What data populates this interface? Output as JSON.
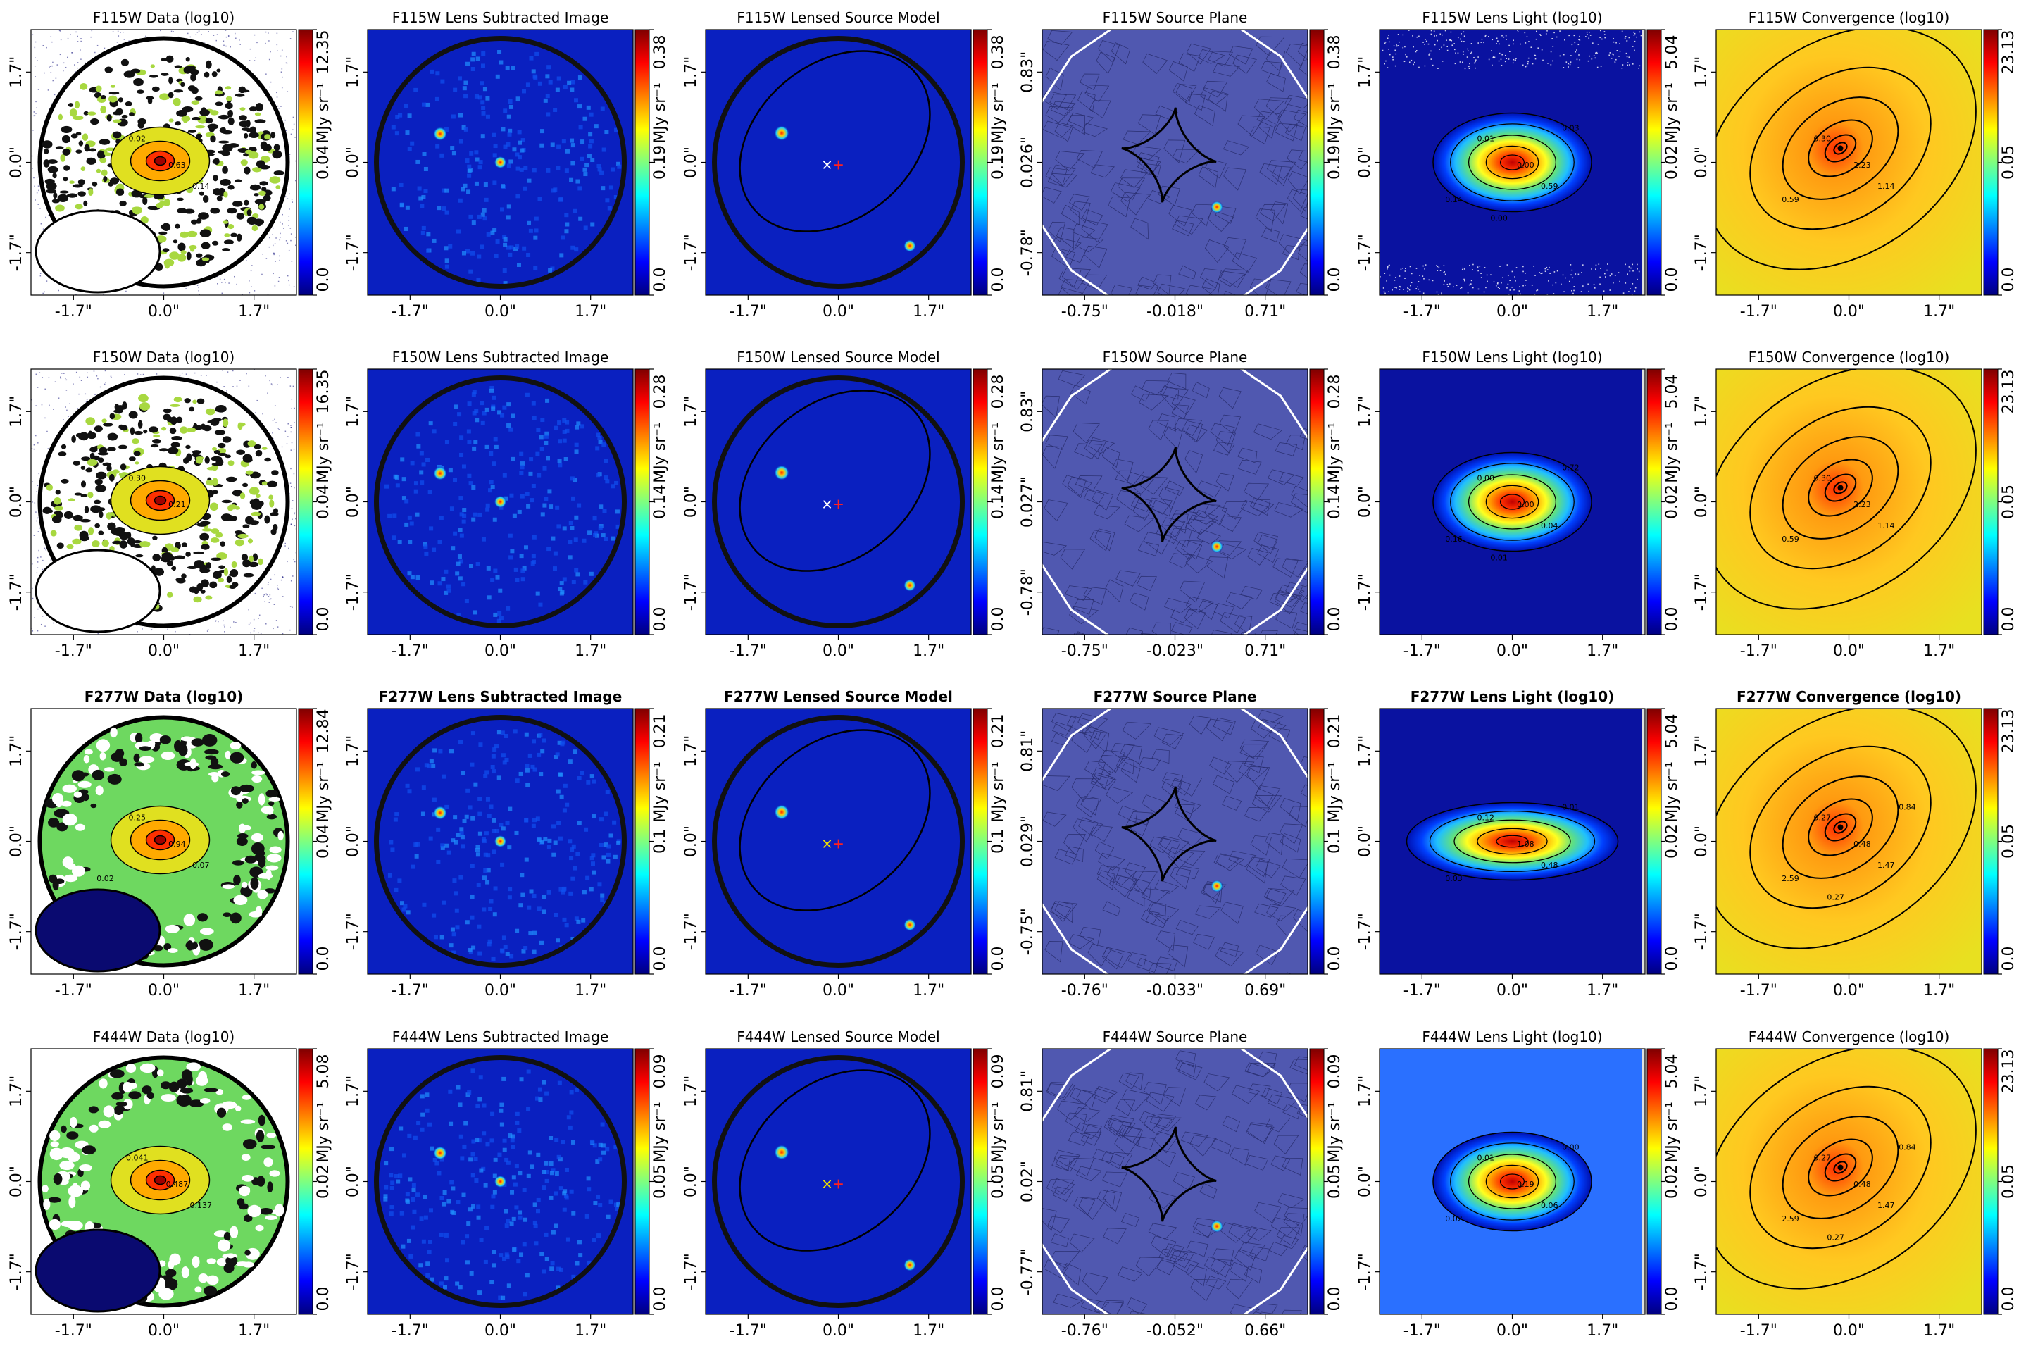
{
  "colormap": [
    "#00007f",
    "#0000ff",
    "#007fff",
    "#00ffff",
    "#7fff7f",
    "#ffff00",
    "#ff7f00",
    "#ff0000",
    "#7f0000"
  ],
  "chart_data": [
    {
      "type": "heatmap",
      "title": "F115W Data (log10)",
      "panel": "data",
      "row": 0,
      "col": 0,
      "bold": false,
      "x_ticks": [
        "-1.7\"",
        "0.0\"",
        "1.7\""
      ],
      "y_ticks": [
        "-1.7\"",
        "0.0\"",
        "1.7\""
      ],
      "colorbar": {
        "ticks": [
          "0.0",
          "0.04",
          "12.35"
        ],
        "label": "MJy sr⁻¹"
      },
      "contour_labels": [
        "0.02",
        "0.63",
        "0.14"
      ]
    },
    {
      "type": "heatmap",
      "title": "F115W Lens Subtracted Image",
      "panel": "residual",
      "row": 0,
      "col": 1,
      "bold": false,
      "x_ticks": [
        "-1.7\"",
        "0.0\"",
        "1.7\""
      ],
      "y_ticks": [
        "-1.7\"",
        "0.0\"",
        "1.7\""
      ],
      "colorbar": {
        "ticks": [
          "0.0",
          "0.19",
          "0.38"
        ],
        "label": "MJy sr⁻¹"
      },
      "contour_labels": []
    },
    {
      "type": "heatmap",
      "title": "F115W Lensed Source Model",
      "panel": "model",
      "row": 0,
      "col": 2,
      "bold": false,
      "x_ticks": [
        "-1.7\"",
        "0.0\"",
        "1.7\""
      ],
      "y_ticks": [
        "-1.7\"",
        "0.0\"",
        "1.7\""
      ],
      "colorbar": {
        "ticks": [
          "0.0",
          "0.19",
          "0.38"
        ],
        "label": "MJy sr⁻¹"
      },
      "contour_labels": []
    },
    {
      "type": "heatmap",
      "title": "F115W Source Plane",
      "panel": "source",
      "row": 0,
      "col": 3,
      "bold": false,
      "x_ticks": [
        "-0.75\"",
        "-0.018\"",
        "0.71\""
      ],
      "y_ticks": [
        "-0.78\"",
        "0.026\"",
        "0.83\""
      ],
      "colorbar": {
        "ticks": [
          "0.0",
          "0.19",
          "0.38"
        ],
        "label": "MJy sr⁻¹"
      },
      "contour_labels": []
    },
    {
      "type": "heatmap",
      "title": "F115W Lens Light (log10)",
      "panel": "light",
      "row": 0,
      "col": 4,
      "bold": false,
      "x_ticks": [
        "-1.7\"",
        "0.0\"",
        "1.7\""
      ],
      "y_ticks": [
        "-1.7\"",
        "0.0\"",
        "1.7\""
      ],
      "colorbar": {
        "ticks": [
          "0.0",
          "0.02",
          "5.04"
        ],
        "label": "MJy sr⁻¹"
      },
      "contour_labels": [
        "0.01",
        "0.00",
        "0.59",
        "0.14",
        "0.03",
        "0.00"
      ]
    },
    {
      "type": "heatmap",
      "title": "F115W Convergence (log10)",
      "panel": "kappa",
      "row": 0,
      "col": 5,
      "bold": false,
      "x_ticks": [
        "-1.7\"",
        "0.0\"",
        "1.7\""
      ],
      "y_ticks": [
        "-1.7\"",
        "0.0\"",
        "1.7\""
      ],
      "colorbar": {
        "ticks": [
          "0.0",
          "0.05",
          "23.13"
        ],
        "label": ""
      },
      "contour_labels": [
        "0.30",
        "2.23",
        "1.14",
        "0.59"
      ]
    },
    {
      "type": "heatmap",
      "title": "F150W Data (log10)",
      "panel": "data",
      "row": 1,
      "col": 0,
      "bold": false,
      "x_ticks": [
        "-1.7\"",
        "0.0\"",
        "1.7\""
      ],
      "y_ticks": [
        "-1.7\"",
        "0.0\"",
        "1.7\""
      ],
      "colorbar": {
        "ticks": [
          "0.0",
          "0.04",
          "16.35"
        ],
        "label": "MJy sr⁻¹"
      },
      "contour_labels": [
        "0.30",
        "0.21"
      ]
    },
    {
      "type": "heatmap",
      "title": "F150W Lens Subtracted Image",
      "panel": "residual",
      "row": 1,
      "col": 1,
      "bold": false,
      "x_ticks": [
        "-1.7\"",
        "0.0\"",
        "1.7\""
      ],
      "y_ticks": [
        "-1.7\"",
        "0.0\"",
        "1.7\""
      ],
      "colorbar": {
        "ticks": [
          "0.0",
          "0.14",
          "0.28"
        ],
        "label": "MJy sr⁻¹"
      },
      "contour_labels": []
    },
    {
      "type": "heatmap",
      "title": "F150W Lensed Source Model",
      "panel": "model",
      "row": 1,
      "col": 2,
      "bold": false,
      "x_ticks": [
        "-1.7\"",
        "0.0\"",
        "1.7\""
      ],
      "y_ticks": [
        "-1.7\"",
        "0.0\"",
        "1.7\""
      ],
      "colorbar": {
        "ticks": [
          "0.0",
          "0.14",
          "0.28"
        ],
        "label": "MJy sr⁻¹"
      },
      "contour_labels": []
    },
    {
      "type": "heatmap",
      "title": "F150W Source Plane",
      "panel": "source",
      "row": 1,
      "col": 3,
      "bold": false,
      "x_ticks": [
        "-0.75\"",
        "-0.023\"",
        "0.71\""
      ],
      "y_ticks": [
        "-0.78\"",
        "0.027\"",
        "0.83\""
      ],
      "colorbar": {
        "ticks": [
          "0.0",
          "0.14",
          "0.28"
        ],
        "label": "MJy sr⁻¹"
      },
      "contour_labels": []
    },
    {
      "type": "heatmap",
      "title": "F150W Lens Light (log10)",
      "panel": "light",
      "row": 1,
      "col": 4,
      "bold": false,
      "x_ticks": [
        "-1.7\"",
        "0.0\"",
        "1.7\""
      ],
      "y_ticks": [
        "-1.7\"",
        "0.0\"",
        "1.7\""
      ],
      "colorbar": {
        "ticks": [
          "0.0",
          "0.02",
          "5.04"
        ],
        "label": "MJy sr⁻¹"
      },
      "contour_labels": [
        "0.00",
        "0.00",
        "0.04",
        "0.16",
        "0.72",
        "0.01"
      ]
    },
    {
      "type": "heatmap",
      "title": "F150W Convergence (log10)",
      "panel": "kappa",
      "row": 1,
      "col": 5,
      "bold": false,
      "x_ticks": [
        "-1.7\"",
        "0.0\"",
        "1.7\""
      ],
      "y_ticks": [
        "-1.7\"",
        "0.0\"",
        "1.7\""
      ],
      "colorbar": {
        "ticks": [
          "0.0",
          "0.05",
          "23.13"
        ],
        "label": ""
      },
      "contour_labels": [
        "0.30",
        "2.23",
        "1.14",
        "0.59"
      ]
    },
    {
      "type": "heatmap",
      "title": "F277W Data (log10)",
      "panel": "data",
      "row": 2,
      "col": 0,
      "bold": true,
      "x_ticks": [
        "-1.7\"",
        "0.0\"",
        "1.7\""
      ],
      "y_ticks": [
        "-1.7\"",
        "0.0\"",
        "1.7\""
      ],
      "colorbar": {
        "ticks": [
          "0.0",
          "0.04",
          "12.84"
        ],
        "label": "MJy sr⁻¹"
      },
      "contour_labels": [
        "0.25",
        "0.94",
        "0.07",
        "0.02"
      ]
    },
    {
      "type": "heatmap",
      "title": "F277W Lens Subtracted Image",
      "panel": "residual",
      "row": 2,
      "col": 1,
      "bold": true,
      "x_ticks": [
        "-1.7\"",
        "0.0\"",
        "1.7\""
      ],
      "y_ticks": [
        "-1.7\"",
        "0.0\"",
        "1.7\""
      ],
      "colorbar": {
        "ticks": [
          "0.0",
          "0.1",
          "0.21"
        ],
        "label": "MJy sr⁻¹"
      },
      "contour_labels": []
    },
    {
      "type": "heatmap",
      "title": "F277W Lensed Source Model",
      "panel": "model",
      "row": 2,
      "col": 2,
      "bold": true,
      "x_ticks": [
        "-1.7\"",
        "0.0\"",
        "1.7\""
      ],
      "y_ticks": [
        "-1.7\"",
        "0.0\"",
        "1.7\""
      ],
      "colorbar": {
        "ticks": [
          "0.0",
          "0.1",
          "0.21"
        ],
        "label": "MJy sr⁻¹"
      },
      "contour_labels": []
    },
    {
      "type": "heatmap",
      "title": "F277W Source Plane",
      "panel": "source",
      "row": 2,
      "col": 3,
      "bold": true,
      "x_ticks": [
        "-0.76\"",
        "-0.033\"",
        "0.69\""
      ],
      "y_ticks": [
        "-0.75\"",
        "0.029\"",
        "0.81\""
      ],
      "colorbar": {
        "ticks": [
          "0.0",
          "0.1",
          "0.21"
        ],
        "label": "MJy sr⁻¹"
      },
      "contour_labels": []
    },
    {
      "type": "heatmap",
      "title": "F277W Lens Light (log10)",
      "panel": "light",
      "row": 2,
      "col": 4,
      "bold": true,
      "x_ticks": [
        "-1.7\"",
        "0.0\"",
        "1.7\""
      ],
      "y_ticks": [
        "-1.7\"",
        "0.0\"",
        "1.7\""
      ],
      "colorbar": {
        "ticks": [
          "0.0",
          "0.02",
          "5.04"
        ],
        "label": "MJy sr⁻¹"
      },
      "contour_labels": [
        "0.12",
        "1.08",
        "0.48",
        "0.03",
        "0.01"
      ]
    },
    {
      "type": "heatmap",
      "title": "F277W Convergence (log10)",
      "panel": "kappa",
      "row": 2,
      "col": 5,
      "bold": true,
      "x_ticks": [
        "-1.7\"",
        "0.0\"",
        "1.7\""
      ],
      "y_ticks": [
        "-1.7\"",
        "0.0\"",
        "1.7\""
      ],
      "colorbar": {
        "ticks": [
          "0.0",
          "0.05",
          "23.13"
        ],
        "label": ""
      },
      "contour_labels": [
        "0.27",
        "0.48",
        "1.47",
        "2.59",
        "0.84",
        "0.27"
      ]
    },
    {
      "type": "heatmap",
      "title": "F444W Data (log10)",
      "panel": "data",
      "row": 3,
      "col": 0,
      "bold": false,
      "x_ticks": [
        "-1.7\"",
        "0.0\"",
        "1.7\""
      ],
      "y_ticks": [
        "-1.7\"",
        "0.0\"",
        "1.7\""
      ],
      "colorbar": {
        "ticks": [
          "0.0",
          "0.02",
          "5.08"
        ],
        "label": "MJy sr⁻¹"
      },
      "contour_labels": [
        "0.041",
        "0.487",
        "0.137"
      ]
    },
    {
      "type": "heatmap",
      "title": "F444W Lens Subtracted Image",
      "panel": "residual",
      "row": 3,
      "col": 1,
      "bold": false,
      "x_ticks": [
        "-1.7\"",
        "0.0\"",
        "1.7\""
      ],
      "y_ticks": [
        "-1.7\"",
        "0.0\"",
        "1.7\""
      ],
      "colorbar": {
        "ticks": [
          "0.0",
          "0.05",
          "0.09"
        ],
        "label": "MJy sr⁻¹"
      },
      "contour_labels": []
    },
    {
      "type": "heatmap",
      "title": "F444W Lensed Source Model",
      "panel": "model",
      "row": 3,
      "col": 2,
      "bold": false,
      "x_ticks": [
        "-1.7\"",
        "0.0\"",
        "1.7\""
      ],
      "y_ticks": [
        "-1.7\"",
        "0.0\"",
        "1.7\""
      ],
      "colorbar": {
        "ticks": [
          "0.0",
          "0.05",
          "0.09"
        ],
        "label": "MJy sr⁻¹"
      },
      "contour_labels": []
    },
    {
      "type": "heatmap",
      "title": "F444W Source Plane",
      "panel": "source",
      "row": 3,
      "col": 3,
      "bold": false,
      "x_ticks": [
        "-0.76\"",
        "-0.052\"",
        "0.66\""
      ],
      "y_ticks": [
        "-0.77\"",
        "0.02\"",
        "0.81\""
      ],
      "colorbar": {
        "ticks": [
          "0.0",
          "0.05",
          "0.09"
        ],
        "label": "MJy sr⁻¹"
      },
      "contour_labels": []
    },
    {
      "type": "heatmap",
      "title": "F444W Lens Light (log10)",
      "panel": "light",
      "row": 3,
      "col": 4,
      "bold": false,
      "x_ticks": [
        "-1.7\"",
        "0.0\"",
        "1.7\""
      ],
      "y_ticks": [
        "-1.7\"",
        "0.0\"",
        "1.7\""
      ],
      "colorbar": {
        "ticks": [
          "0.0",
          "0.02",
          "5.04"
        ],
        "label": "MJy sr⁻¹"
      },
      "contour_labels": [
        "0.01",
        "0.19",
        "0.06",
        "0.02",
        "0.00"
      ]
    },
    {
      "type": "heatmap",
      "title": "F444W Convergence (log10)",
      "panel": "kappa",
      "row": 3,
      "col": 5,
      "bold": false,
      "x_ticks": [
        "-1.7\"",
        "0.0\"",
        "1.7\""
      ],
      "y_ticks": [
        "-1.7\"",
        "0.0\"",
        "1.7\""
      ],
      "colorbar": {
        "ticks": [
          "0.0",
          "0.05",
          "23.13"
        ],
        "label": ""
      },
      "contour_labels": [
        "0.27",
        "0.48",
        "1.47",
        "2.59",
        "0.84",
        "0.27"
      ]
    }
  ]
}
